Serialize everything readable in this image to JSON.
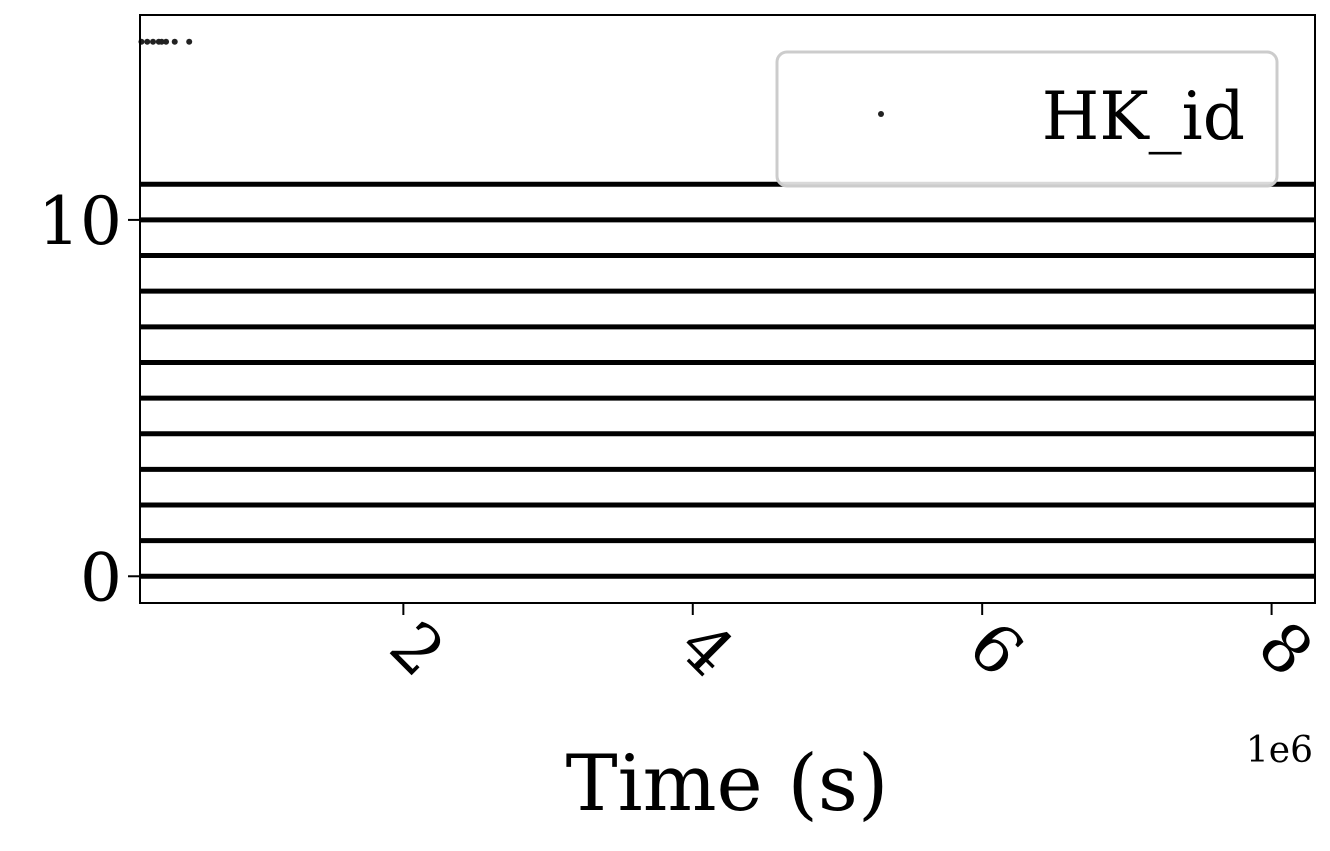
{
  "chart_data": {
    "type": "scatter",
    "xlabel": "Time (s)",
    "ylabel": "",
    "x_offset_label": "1e6",
    "x_ticks": [
      2,
      4,
      6,
      8
    ],
    "y_ticks": [
      0,
      10
    ],
    "xlim": [
      0.18,
      8.3
    ],
    "ylim": [
      -0.75,
      15.75
    ],
    "x_tick_rotation_deg": 45,
    "series": [
      {
        "name": "HK_id",
        "marker": "dot",
        "color": "#000000",
        "bands": [
          {
            "y": 0,
            "x_start": 0.18,
            "x_end": 8.3
          },
          {
            "y": 1,
            "x_start": 0.18,
            "x_end": 8.3
          },
          {
            "y": 2,
            "x_start": 0.18,
            "x_end": 8.3
          },
          {
            "y": 3,
            "x_start": 0.18,
            "x_end": 8.3
          },
          {
            "y": 4,
            "x_start": 0.18,
            "x_end": 8.3
          },
          {
            "y": 5,
            "x_start": 0.18,
            "x_end": 8.3
          },
          {
            "y": 6,
            "x_start": 0.18,
            "x_end": 8.3
          },
          {
            "y": 7,
            "x_start": 0.18,
            "x_end": 8.3
          },
          {
            "y": 8,
            "x_start": 0.18,
            "x_end": 8.3
          },
          {
            "y": 9,
            "x_start": 0.18,
            "x_end": 8.3
          },
          {
            "y": 10,
            "x_start": 0.18,
            "x_end": 8.3
          },
          {
            "y": 11,
            "x_start": 0.18,
            "x_end": 8.3
          }
        ],
        "sparse_points": [
          {
            "x": 0.19,
            "y": 15
          },
          {
            "x": 0.23,
            "y": 15
          },
          {
            "x": 0.27,
            "y": 15
          },
          {
            "x": 0.31,
            "y": 15
          },
          {
            "x": 0.33,
            "y": 15
          },
          {
            "x": 0.36,
            "y": 15
          },
          {
            "x": 0.42,
            "y": 15
          },
          {
            "x": 0.52,
            "y": 15
          }
        ]
      }
    ],
    "legend": {
      "placement": "top-right",
      "entries": [
        "HK_id"
      ]
    },
    "grid": false
  }
}
